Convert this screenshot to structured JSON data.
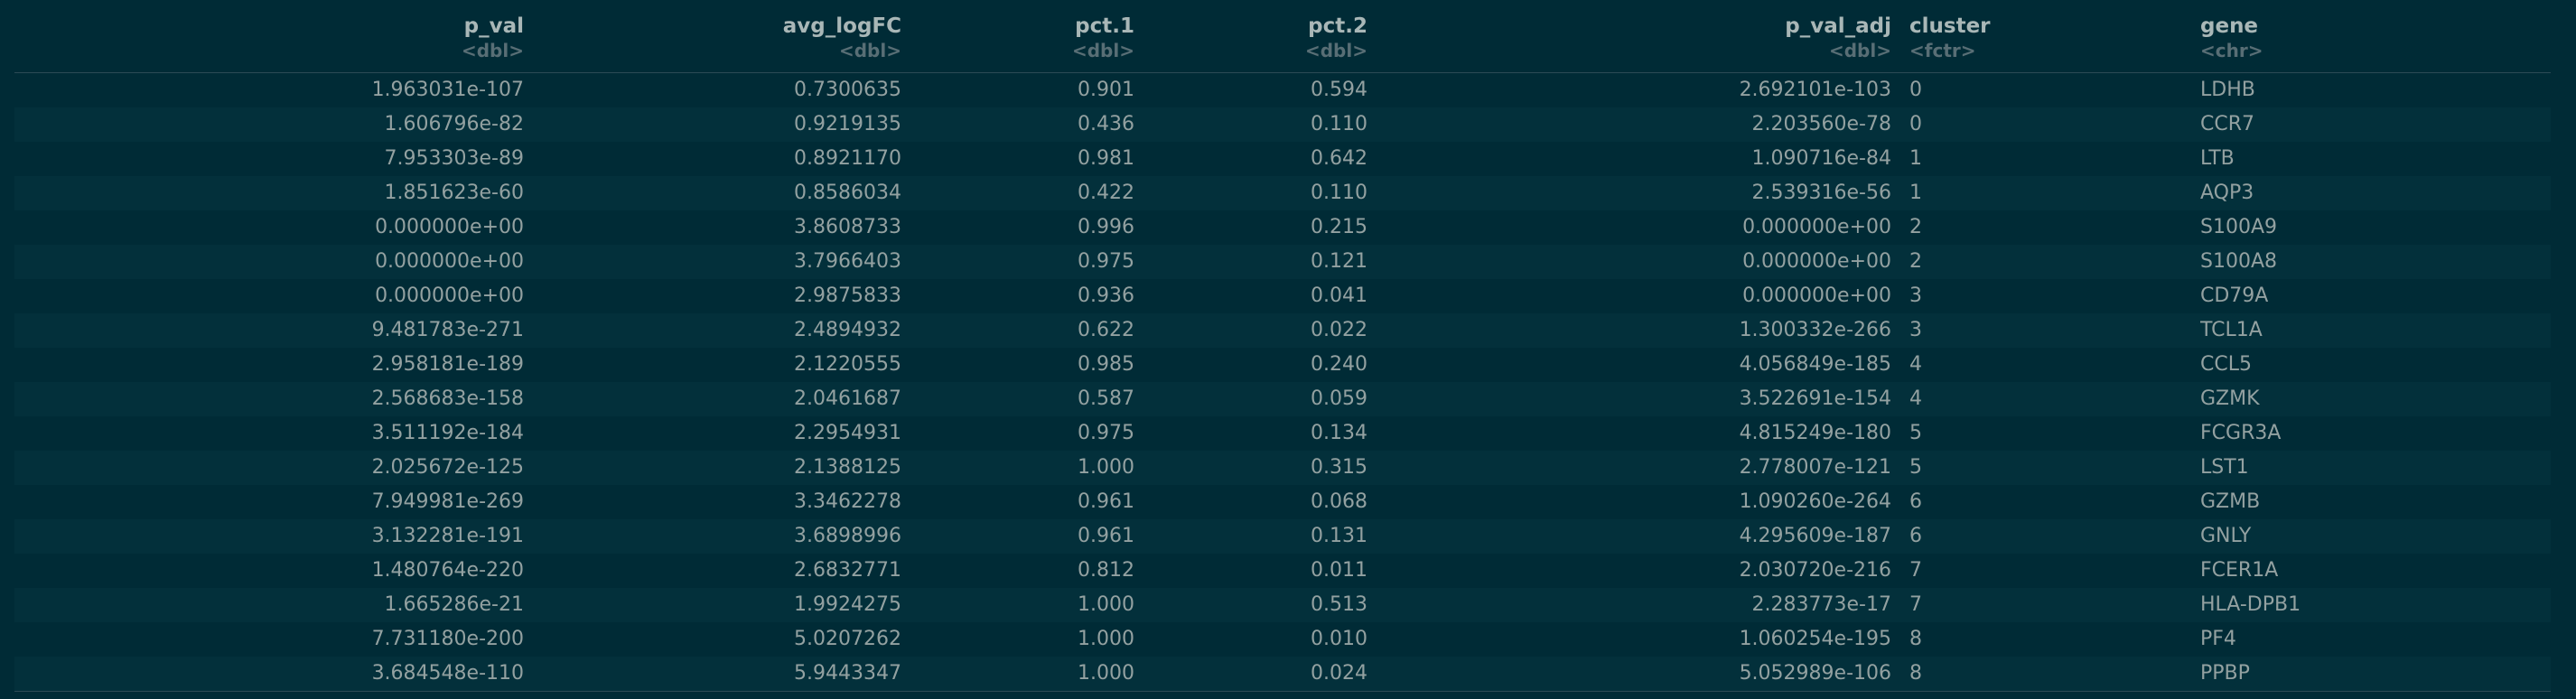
{
  "table": {
    "columns": [
      {
        "name": "p_val",
        "type": "<dbl>"
      },
      {
        "name": "avg_logFC",
        "type": "<dbl>"
      },
      {
        "name": "pct.1",
        "type": "<dbl>"
      },
      {
        "name": "pct.2",
        "type": "<dbl>"
      },
      {
        "name": "p_val_adj",
        "type": "<dbl>"
      },
      {
        "name": "cluster",
        "type": "<fctr>"
      },
      {
        "name": "gene",
        "type": "<chr>"
      }
    ],
    "rows": [
      [
        "1.963031e-107",
        "0.7300635",
        "0.901",
        "0.594",
        "2.692101e-103",
        "0",
        "LDHB"
      ],
      [
        "1.606796e-82",
        "0.9219135",
        "0.436",
        "0.110",
        "2.203560e-78",
        "0",
        "CCR7"
      ],
      [
        "7.953303e-89",
        "0.8921170",
        "0.981",
        "0.642",
        "1.090716e-84",
        "1",
        "LTB"
      ],
      [
        "1.851623e-60",
        "0.8586034",
        "0.422",
        "0.110",
        "2.539316e-56",
        "1",
        "AQP3"
      ],
      [
        "0.000000e+00",
        "3.8608733",
        "0.996",
        "0.215",
        "0.000000e+00",
        "2",
        "S100A9"
      ],
      [
        "0.000000e+00",
        "3.7966403",
        "0.975",
        "0.121",
        "0.000000e+00",
        "2",
        "S100A8"
      ],
      [
        "0.000000e+00",
        "2.9875833",
        "0.936",
        "0.041",
        "0.000000e+00",
        "3",
        "CD79A"
      ],
      [
        "9.481783e-271",
        "2.4894932",
        "0.622",
        "0.022",
        "1.300332e-266",
        "3",
        "TCL1A"
      ],
      [
        "2.958181e-189",
        "2.1220555",
        "0.985",
        "0.240",
        "4.056849e-185",
        "4",
        "CCL5"
      ],
      [
        "2.568683e-158",
        "2.0461687",
        "0.587",
        "0.059",
        "3.522691e-154",
        "4",
        "GZMK"
      ],
      [
        "3.511192e-184",
        "2.2954931",
        "0.975",
        "0.134",
        "4.815249e-180",
        "5",
        "FCGR3A"
      ],
      [
        "2.025672e-125",
        "2.1388125",
        "1.000",
        "0.315",
        "2.778007e-121",
        "5",
        "LST1"
      ],
      [
        "7.949981e-269",
        "3.3462278",
        "0.961",
        "0.068",
        "1.090260e-264",
        "6",
        "GZMB"
      ],
      [
        "3.132281e-191",
        "3.6898996",
        "0.961",
        "0.131",
        "4.295609e-187",
        "6",
        "GNLY"
      ],
      [
        "1.480764e-220",
        "2.6832771",
        "0.812",
        "0.011",
        "2.030720e-216",
        "7",
        "FCER1A"
      ],
      [
        "1.665286e-21",
        "1.9924275",
        "1.000",
        "0.513",
        "2.283773e-17",
        "7",
        "HLA-DPB1"
      ],
      [
        "7.731180e-200",
        "5.0207262",
        "1.000",
        "0.010",
        "1.060254e-195",
        "8",
        "PF4"
      ],
      [
        "3.684548e-110",
        "5.9443347",
        "1.000",
        "0.024",
        "5.052989e-106",
        "8",
        "PPBP"
      ]
    ]
  },
  "colors": {
    "background": "#002b36",
    "text": "#93a1a1",
    "header_text": "#a9b7b7",
    "type_text": "#586e75",
    "rule": "#2c4a55"
  }
}
